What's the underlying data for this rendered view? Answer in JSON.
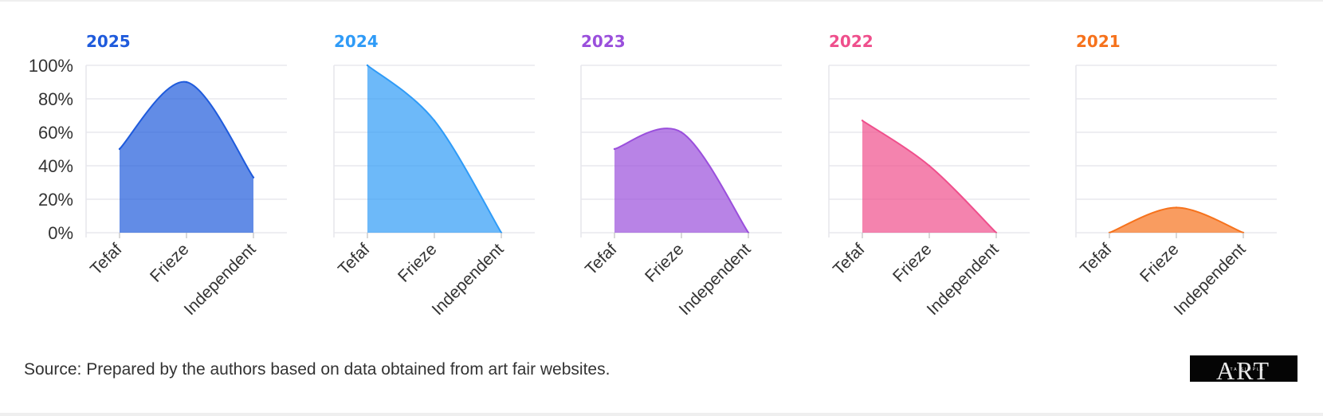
{
  "chart_data": {
    "type": "area",
    "categories": [
      "Tefaf",
      "Frieze",
      "Independent"
    ],
    "ylim": [
      0,
      100
    ],
    "yticks": [
      0,
      20,
      40,
      60,
      80,
      100
    ],
    "ytick_suffix": "%",
    "grid": true,
    "panels": [
      {
        "title": "2025",
        "color": "#1f5bdc",
        "values": [
          50,
          90,
          33
        ]
      },
      {
        "title": "2024",
        "color": "#2f9bf7",
        "values": [
          100,
          67,
          0
        ]
      },
      {
        "title": "2023",
        "color": "#9a4fdc",
        "values": [
          50,
          60,
          0
        ]
      },
      {
        "title": "2022",
        "color": "#ef4f8c",
        "values": [
          67,
          40,
          0
        ]
      },
      {
        "title": "2021",
        "color": "#f6721c",
        "values": [
          0,
          15,
          0
        ]
      }
    ]
  },
  "footer": {
    "source": "Source: Prepared by the authors based on data obtained from art fair websites.",
    "logo_text": "ART",
    "logo_subtext": "DATA SIMPLE"
  }
}
